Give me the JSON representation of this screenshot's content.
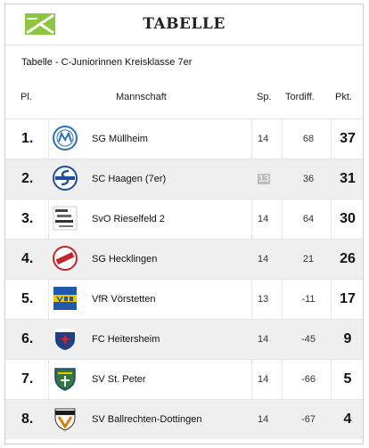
{
  "header": {
    "title": "TABELLE",
    "logo_icon": "green-flag-logo-icon",
    "accent": "#8cc63f"
  },
  "subtitle": "Tabelle - C-Juniorinnen Kreisklasse 7er",
  "columns": {
    "rank": "Pl.",
    "team": "Mannschaft",
    "games": "Sp.",
    "goal_diff": "Tordiff.",
    "points": "Pkt."
  },
  "rows": [
    {
      "rank": "1.",
      "team": "SG Müllheim",
      "games": "14",
      "goal_diff": "68",
      "points": "37",
      "crest": "sg-muellheim-crest-icon"
    },
    {
      "rank": "2.",
      "team": "SC Haagen (7er)",
      "games": "13",
      "goal_diff": "36",
      "points": "31",
      "crest": "sc-haagen-crest-icon",
      "games_badge": true
    },
    {
      "rank": "3.",
      "team": "SvO Rieselfeld 2",
      "games": "14",
      "goal_diff": "64",
      "points": "30",
      "crest": "svo-rieselfeld-crest-icon"
    },
    {
      "rank": "4.",
      "team": "SG Hecklingen",
      "games": "14",
      "goal_diff": "21",
      "points": "26",
      "crest": "sg-hecklingen-crest-icon"
    },
    {
      "rank": "5.",
      "team": "VfR Vörstetten",
      "games": "13",
      "goal_diff": "-11",
      "points": "17",
      "crest": "vfr-voerstetten-crest-icon"
    },
    {
      "rank": "6.",
      "team": "FC Heitersheim",
      "games": "14",
      "goal_diff": "-45",
      "points": "9",
      "crest": "fc-heitersheim-crest-icon"
    },
    {
      "rank": "7.",
      "team": "SV St. Peter",
      "games": "14",
      "goal_diff": "-66",
      "points": "5",
      "crest": "sv-st-peter-crest-icon"
    },
    {
      "rank": "8.",
      "team": "SV Ballrechten-Dottingen",
      "games": "14",
      "goal_diff": "-67",
      "points": "4",
      "crest": "sv-ballrechten-dottingen-crest-icon"
    }
  ]
}
